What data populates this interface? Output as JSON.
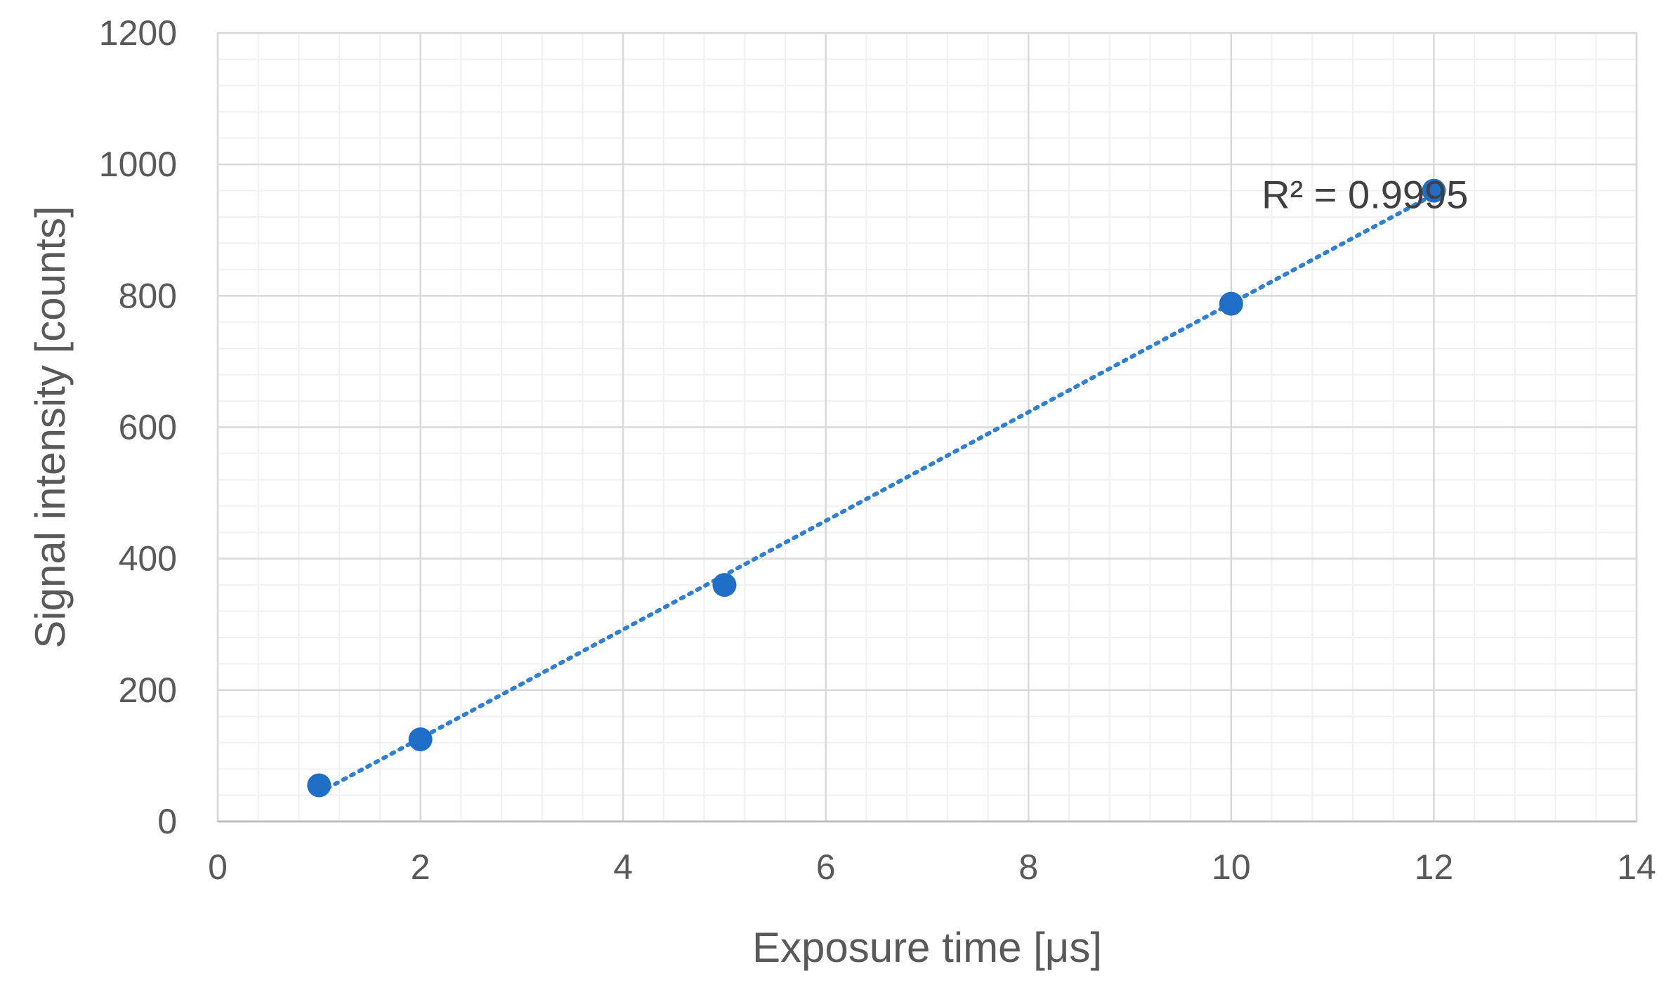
{
  "chart_data": {
    "type": "scatter",
    "title": "",
    "xlabel": "Exposure time [μs]",
    "ylabel": "Signal intensity [counts]",
    "xlim": [
      0,
      14
    ],
    "ylim": [
      0,
      1200
    ],
    "x_ticks": [
      0,
      2,
      4,
      6,
      8,
      10,
      12,
      14
    ],
    "y_ticks": [
      0,
      200,
      400,
      600,
      800,
      1000,
      1200
    ],
    "x_minor_step": 0.4,
    "y_minor_step": 40,
    "grid": true,
    "legend": "none",
    "series": [
      {
        "x": [
          1,
          2,
          5,
          10,
          12
        ],
        "y": [
          55,
          125,
          360,
          788,
          960
        ],
        "color": "#1f6fc9",
        "trendline": {
          "type": "linear",
          "style": "dotted",
          "color": "#2e7fd6"
        }
      }
    ],
    "annotations": [
      {
        "text": "R² = 0.9995",
        "x": 10.3,
        "y": 955
      }
    ]
  },
  "colors": {
    "marker": "#1f6fc9",
    "trendline": "#2e7fd6",
    "major_grid": "#d9d9d9",
    "minor_grid": "#f0f0f0",
    "axis_text": "#595959"
  }
}
